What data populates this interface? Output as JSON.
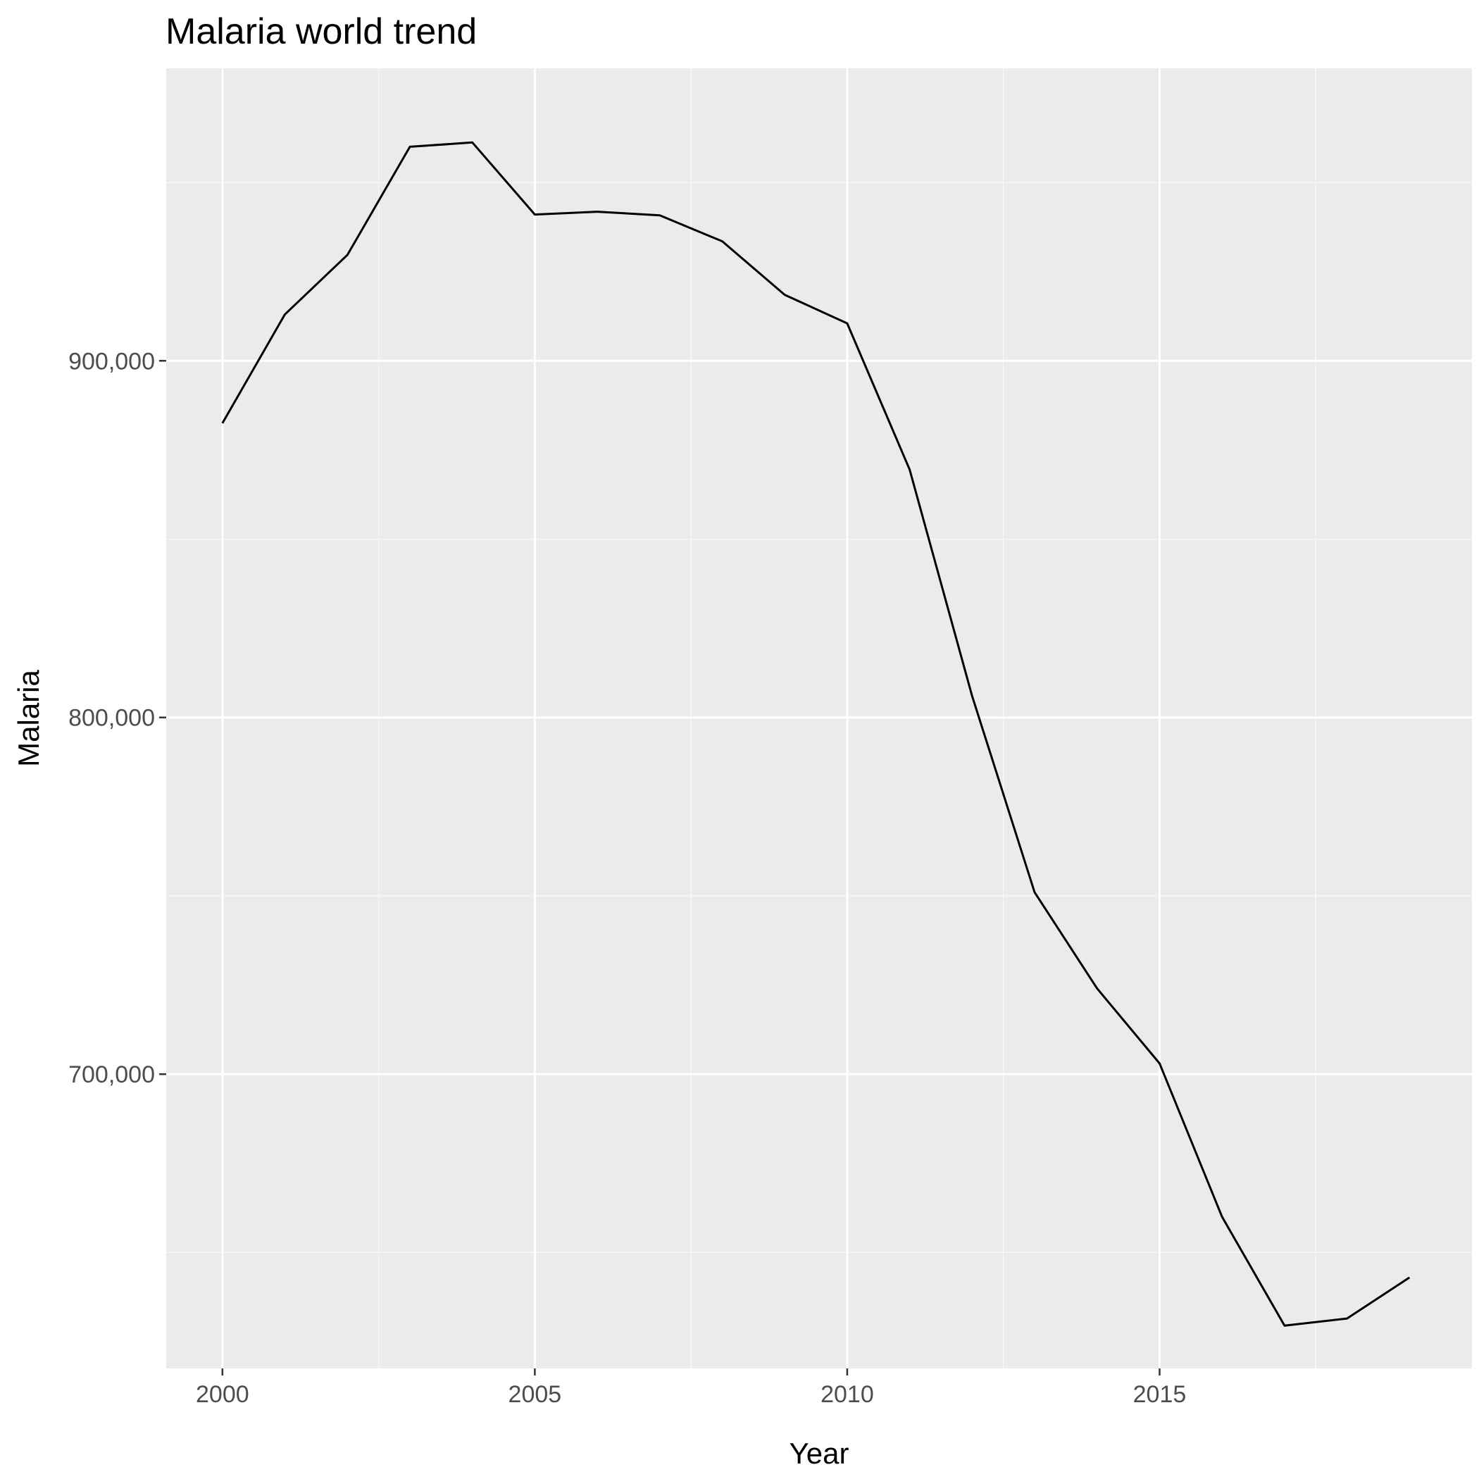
{
  "chart_data": {
    "type": "line",
    "title": "Malaria world trend",
    "xlabel": "Year",
    "ylabel": "Malaria",
    "x": [
      2000,
      2001,
      2002,
      2003,
      2004,
      2005,
      2006,
      2007,
      2008,
      2009,
      2010,
      2011,
      2012,
      2013,
      2014,
      2015,
      2016,
      2017,
      2018,
      2019
    ],
    "series": [
      {
        "values": [
          882500,
          913000,
          929700,
          960000,
          961200,
          941000,
          941800,
          940800,
          933500,
          918500,
          910500,
          869500,
          806000,
          751000,
          724000,
          703000,
          660000,
          629500,
          631500,
          643000
        ]
      }
    ],
    "xlim": [
      1999.1,
      2020.0
    ],
    "ylim": [
      617500,
      982000
    ],
    "x_ticks": [
      2000,
      2005,
      2010,
      2015
    ],
    "x_tick_labels": [
      "2000",
      "2005",
      "2010",
      "2015"
    ],
    "x_minor_ticks": [
      2002.5,
      2007.5,
      2012.5,
      2017.5
    ],
    "y_ticks": [
      700000,
      800000,
      900000
    ],
    "y_tick_labels": [
      "700,000",
      "800,000",
      "900,000"
    ],
    "y_minor_ticks": [
      650000,
      750000,
      850000,
      950000
    ],
    "grid": true,
    "legend": "none",
    "colors": {
      "panel_background": "#ebebeb",
      "grid_major": "#ffffff",
      "grid_minor": "#f7f7f7",
      "line": "#000000",
      "tick_mark": "#333333",
      "tick_label": "#4d4d4d",
      "text": "#000000"
    }
  }
}
